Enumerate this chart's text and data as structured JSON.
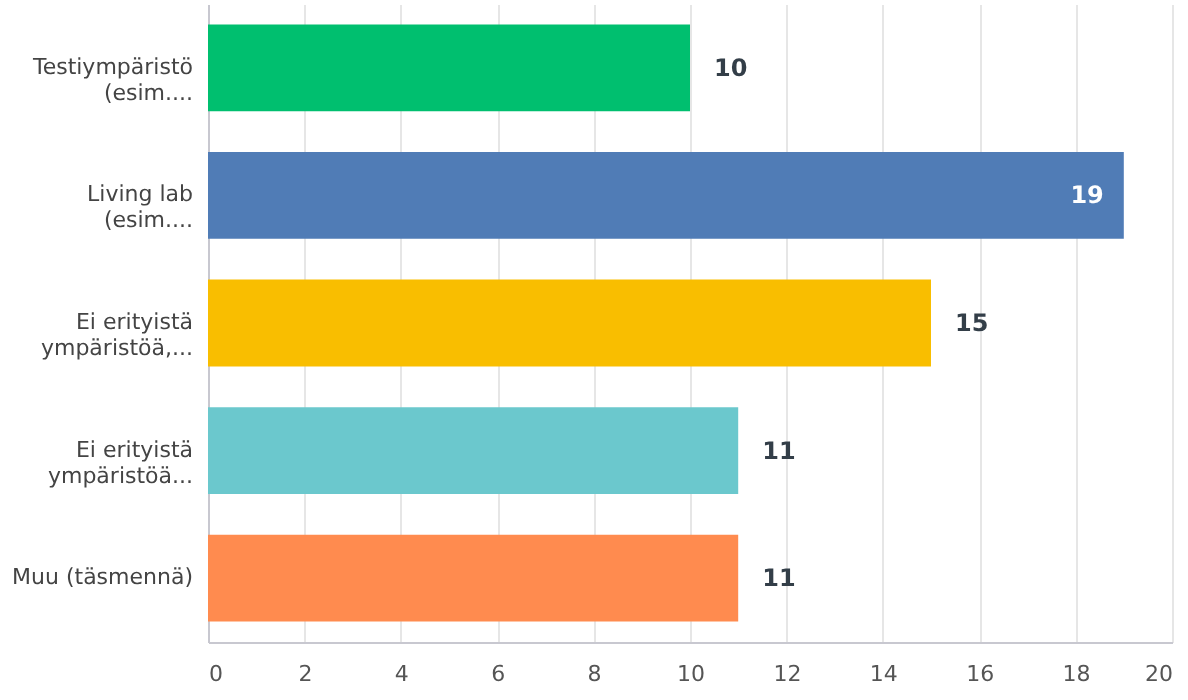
{
  "chart_data": {
    "type": "bar",
    "orientation": "horizontal",
    "categories": [
      "Testiympäristö\n(esim....",
      "Living lab\n(esim....",
      "Ei erityistä\nympäristöä,...",
      "Ei erityistä\nympäristöä...",
      "Muu (täsmennä)"
    ],
    "values": [
      10,
      19,
      15,
      11,
      11
    ],
    "colors": [
      "#00bf6f",
      "#507cb6",
      "#f9be00",
      "#6bc8cd",
      "#ff8b4f"
    ],
    "xlim": [
      0,
      20
    ],
    "xticks": [
      0,
      2,
      4,
      6,
      8,
      10,
      12,
      14,
      16,
      18,
      20
    ],
    "grid": "x",
    "data_labels": true
  }
}
